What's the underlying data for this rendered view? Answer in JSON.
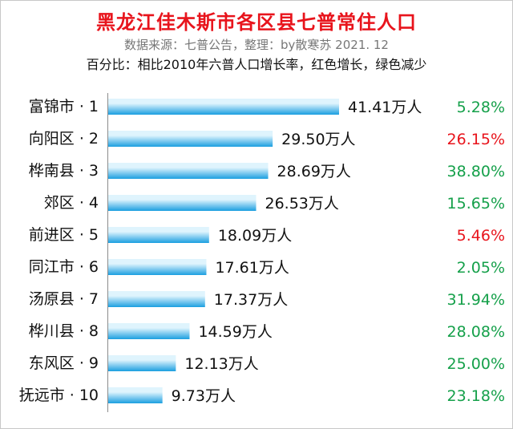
{
  "header": {
    "title": "黑龙江佳木斯市各区县七普常住人口",
    "subtitle": "数据来源：七普公告，整理：by散寒苏  2021. 12",
    "note": "百分比：相比2010年六普人口增长率，红色增长，绿色减少"
  },
  "colors": {
    "title": "#e8141c",
    "bar_light": "#dff4fd",
    "bar_dark": "#1b9fe0",
    "red": "#e8141c",
    "green": "#15a04a"
  },
  "chart_data": {
    "type": "bar",
    "orientation": "horizontal",
    "title": "黑龙江佳木斯市各区县七普常住人口",
    "unit": "万人",
    "xlim": [
      0,
      41.41
    ],
    "grid": false,
    "categories": [
      "富锦市 · 1",
      "向阳区 · 2",
      "桦南县 · 3",
      "郊区 · 4",
      "前进区 · 5",
      "同江市 · 6",
      "汤原县 · 7",
      "桦川县 · 8",
      "东风区 · 9",
      "抚远市 · 10"
    ],
    "values": [
      41.41,
      29.5,
      28.69,
      26.53,
      18.09,
      17.61,
      17.37,
      14.59,
      12.13,
      9.73
    ],
    "value_labels": [
      "41.41万人",
      "29.50万人",
      "28.69万人",
      "26.53万人",
      "18.09万人",
      "17.61万人",
      "17.37万人",
      "14.59万人",
      "12.13万人",
      "9.73万人"
    ],
    "growth_rates": [
      "5.28%",
      "26.15%",
      "38.80%",
      "15.65%",
      "5.46%",
      "2.05%",
      "31.94%",
      "28.08%",
      "25.00%",
      "23.18%"
    ],
    "growth_colors": [
      "green",
      "red",
      "green",
      "green",
      "red",
      "green",
      "green",
      "green",
      "green",
      "green"
    ]
  }
}
